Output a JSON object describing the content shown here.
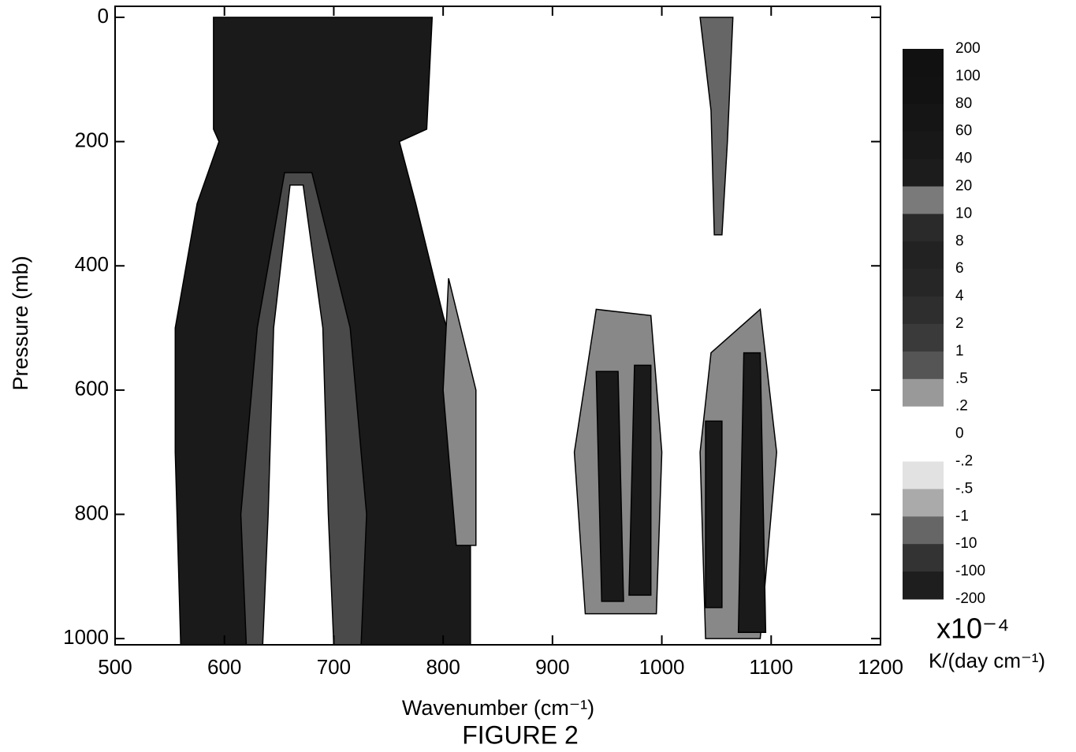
{
  "chart_data": {
    "type": "contour",
    "title": "FIGURE 2",
    "x_label": "Wavenumber (cm⁻¹)",
    "y_label": "Pressure (mb)",
    "xlim": [
      500,
      1200
    ],
    "ylim": [
      0,
      1010
    ],
    "y_inverted": true,
    "xticks": [
      500,
      600,
      700,
      800,
      900,
      1000,
      1100,
      1200
    ],
    "yticks": [
      0,
      200,
      400,
      600,
      800,
      1000
    ],
    "colorbar": {
      "scale_label": "x10⁻⁴",
      "units": "K/(day cm⁻¹)",
      "levels": [
        200,
        100,
        80,
        60,
        40,
        20,
        10,
        8,
        6,
        4,
        2,
        1,
        {
          "value": 0.5,
          "label": ".5"
        },
        {
          "value": 0.2,
          "label": ".2"
        },
        0,
        {
          "value": -0.2,
          "label": "-.2"
        },
        {
          "value": -0.5,
          "label": "-.5"
        },
        -1,
        -10,
        -100,
        -200
      ],
      "colors": [
        "#111111",
        "#121212",
        "#151515",
        "#181818",
        "#1c1c1c",
        "#7a7a7a",
        "#2a2a2a",
        "#222222",
        "#262626",
        "#2e2e2e",
        "#3a3a3a",
        "#555555",
        "#999999",
        "#ffffff",
        "#ffffff",
        "#e2e2e2",
        "#aaaaaa",
        "#666666",
        "#333333",
        "#1e1e1e"
      ]
    },
    "regions": [
      {
        "level": 20,
        "color": "#1a1a1a",
        "points": [
          [
            590,
            0
          ],
          [
            790,
            0
          ],
          [
            785,
            180
          ],
          [
            760,
            200
          ],
          [
            775,
            300
          ],
          [
            800,
            480
          ],
          [
            820,
            600
          ],
          [
            825,
            800
          ],
          [
            825,
            1010
          ],
          [
            560,
            1010
          ],
          [
            555,
            700
          ],
          [
            555,
            500
          ],
          [
            575,
            300
          ],
          [
            595,
            200
          ],
          [
            590,
            180
          ]
        ]
      },
      {
        "level": 1,
        "color": "#888888",
        "points": [
          [
            805,
            420
          ],
          [
            830,
            600
          ],
          [
            830,
            850
          ],
          [
            812,
            850
          ],
          [
            800,
            600
          ]
        ]
      },
      {
        "level": 4,
        "color": "#4a4a4a",
        "points": [
          [
            655,
            250
          ],
          [
            680,
            250
          ],
          [
            715,
            500
          ],
          [
            730,
            800
          ],
          [
            725,
            1010
          ],
          [
            620,
            1010
          ],
          [
            615,
            800
          ],
          [
            630,
            500
          ]
        ]
      },
      {
        "level": 0,
        "color": "#ffffff",
        "points": [
          [
            660,
            270
          ],
          [
            672,
            270
          ],
          [
            690,
            500
          ],
          [
            695,
            800
          ],
          [
            700,
            1010
          ],
          [
            635,
            1010
          ],
          [
            640,
            800
          ],
          [
            645,
            500
          ]
        ]
      },
      {
        "level": 1,
        "color": "#888888",
        "points": [
          [
            940,
            470
          ],
          [
            990,
            480
          ],
          [
            1000,
            700
          ],
          [
            995,
            960
          ],
          [
            930,
            960
          ],
          [
            920,
            700
          ]
        ]
      },
      {
        "level": 20,
        "color": "#1a1a1a",
        "points": [
          [
            940,
            570
          ],
          [
            960,
            570
          ],
          [
            965,
            940
          ],
          [
            945,
            940
          ]
        ]
      },
      {
        "level": 20,
        "color": "#1a1a1a",
        "points": [
          [
            975,
            560
          ],
          [
            990,
            560
          ],
          [
            990,
            930
          ],
          [
            970,
            930
          ]
        ]
      },
      {
        "level": 1,
        "color": "#888888",
        "points": [
          [
            1045,
            540
          ],
          [
            1090,
            470
          ],
          [
            1105,
            700
          ],
          [
            1090,
            1000
          ],
          [
            1040,
            1000
          ],
          [
            1035,
            700
          ]
        ]
      },
      {
        "level": 20,
        "color": "#1a1a1a",
        "points": [
          [
            1040,
            650
          ],
          [
            1055,
            650
          ],
          [
            1055,
            950
          ],
          [
            1040,
            950
          ]
        ]
      },
      {
        "level": 20,
        "color": "#1a1a1a",
        "points": [
          [
            1075,
            540
          ],
          [
            1090,
            540
          ],
          [
            1095,
            990
          ],
          [
            1070,
            990
          ]
        ]
      },
      {
        "level": 2,
        "color": "#666666",
        "points": [
          [
            1035,
            0
          ],
          [
            1065,
            0
          ],
          [
            1060,
            200
          ],
          [
            1055,
            350
          ],
          [
            1048,
            350
          ],
          [
            1045,
            150
          ]
        ]
      }
    ]
  }
}
